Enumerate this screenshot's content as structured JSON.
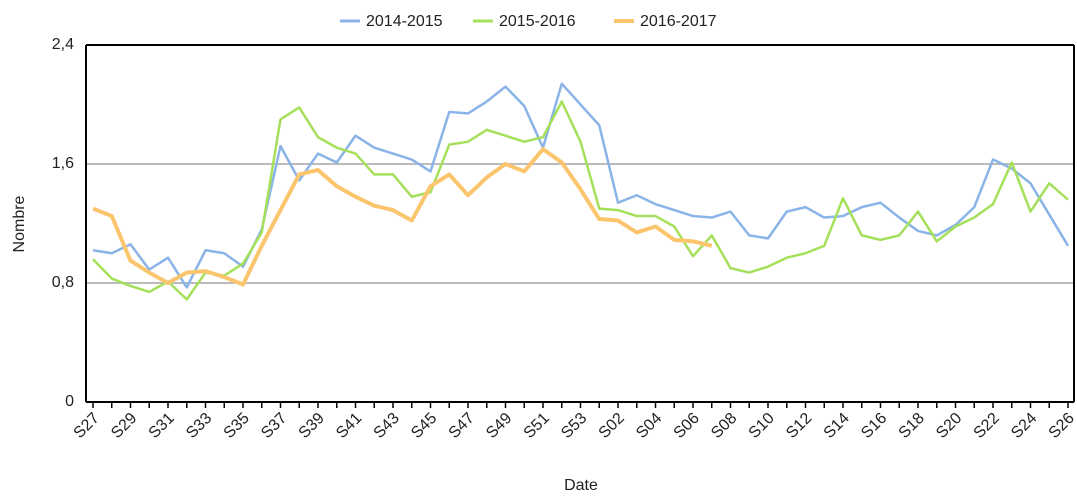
{
  "chart_data": {
    "type": "line",
    "x_label": "Date",
    "y_label": "Nombre",
    "categories": [
      "S27",
      null,
      "S29",
      null,
      "S31",
      null,
      "S33",
      null,
      "S35",
      null,
      "S37",
      null,
      "S39",
      null,
      "S41",
      null,
      "S43",
      null,
      "S45",
      null,
      "S47",
      null,
      "S49",
      null,
      "S51",
      null,
      "S53",
      null,
      "S02",
      null,
      "S04",
      null,
      "S06",
      null,
      "S08",
      null,
      "S10",
      null,
      "S12",
      null,
      "S14",
      null,
      "S16",
      null,
      "S18",
      null,
      "S20",
      null,
      "S22",
      null,
      "S24",
      null,
      "S26"
    ],
    "series": [
      {
        "name": "2014-2015",
        "color": "#8ab4e8",
        "values": [
          1.02,
          1.0,
          1.06,
          0.89,
          0.97,
          0.77,
          1.02,
          1.0,
          0.91,
          1.16,
          1.72,
          1.49,
          1.67,
          1.61,
          1.79,
          1.71,
          1.67,
          1.63,
          1.55,
          1.95,
          1.94,
          2.02,
          2.12,
          1.99,
          1.71,
          2.14,
          2.0,
          1.86,
          1.34,
          1.39,
          1.33,
          1.29,
          1.25,
          1.24,
          1.28,
          1.12,
          1.1,
          1.28,
          1.31,
          1.24,
          1.25,
          1.31,
          1.34,
          1.24,
          1.15,
          1.12,
          1.19,
          1.31,
          1.63,
          1.57,
          1.47,
          1.26,
          1.05
        ]
      },
      {
        "name": "2015-2016",
        "color": "#a5e05a",
        "values": [
          0.96,
          0.83,
          0.78,
          0.74,
          0.81,
          0.69,
          0.87,
          0.85,
          0.93,
          1.14,
          1.9,
          1.98,
          1.78,
          1.71,
          1.67,
          1.53,
          1.53,
          1.38,
          1.41,
          1.73,
          1.75,
          1.83,
          1.79,
          1.75,
          1.78,
          2.02,
          1.75,
          1.3,
          1.29,
          1.25,
          1.25,
          1.18,
          0.98,
          1.12,
          0.9,
          0.87,
          0.91,
          0.97,
          1.0,
          1.05,
          1.37,
          1.12,
          1.09,
          1.12,
          1.28,
          1.08,
          1.18,
          1.24,
          1.33,
          1.61,
          1.28,
          1.47,
          1.36
        ]
      },
      {
        "name": "2016-2017",
        "color": "#fbc56e",
        "values": [
          1.3,
          1.25,
          0.95,
          0.87,
          0.8,
          0.87,
          0.88,
          0.84,
          0.79,
          1.05,
          1.29,
          1.53,
          1.56,
          1.45,
          1.38,
          1.32,
          1.29,
          1.22,
          1.45,
          1.53,
          1.39,
          1.51,
          1.6,
          1.55,
          1.7,
          1.61,
          1.43,
          1.23,
          1.22,
          1.14,
          1.18,
          1.09,
          1.08,
          1.05,
          null,
          null,
          null,
          null,
          null,
          null,
          null,
          null,
          null,
          null,
          null,
          null,
          null,
          null,
          null,
          null,
          null,
          null,
          null
        ]
      }
    ],
    "ylim": [
      0,
      2.4
    ],
    "yticks": [
      0,
      {
        "value": 0.8,
        "label": "0,8"
      },
      {
        "value": 1.6,
        "label": "1,6"
      },
      {
        "value": 2.4,
        "label": "2,4"
      }
    ],
    "grid": true,
    "legend": "top"
  }
}
